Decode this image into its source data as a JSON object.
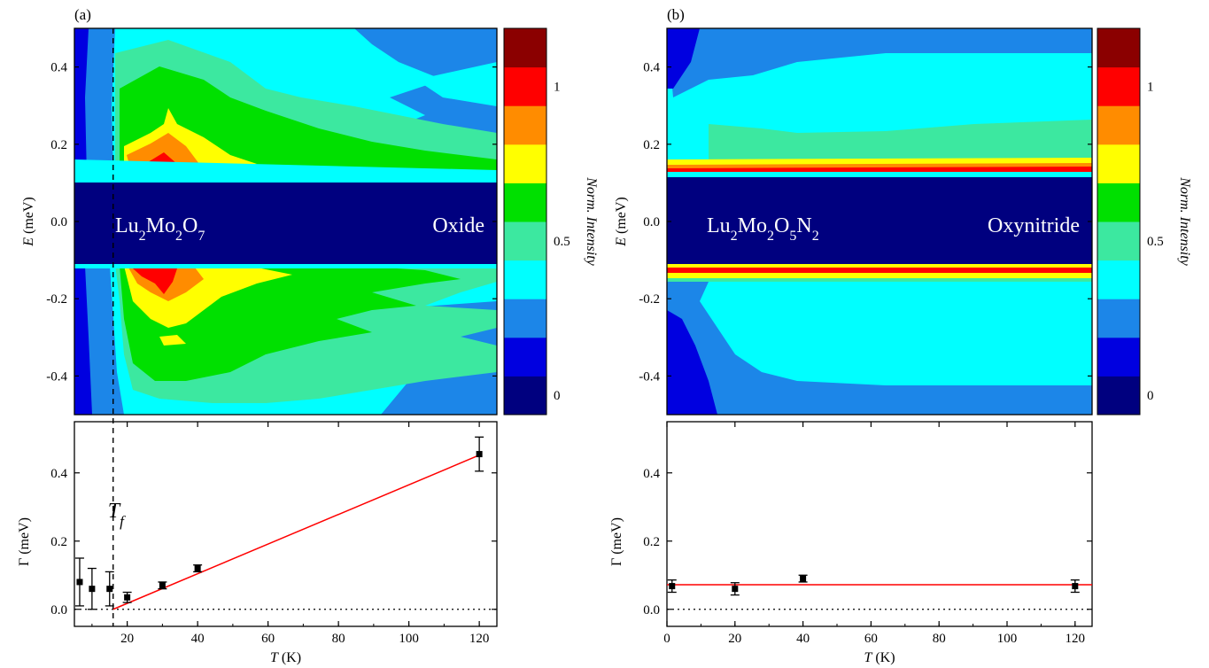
{
  "colorbar": {
    "label": "Norm. Intensity",
    "ticks": [
      "0",
      "0.5",
      "1"
    ],
    "colors": [
      "#00007f",
      "#0000e0",
      "#1c86e8",
      "#00ffff",
      "#3ce8a0",
      "#00e000",
      "#ffff00",
      "#ff8c00",
      "#ff0000",
      "#8b0000"
    ]
  },
  "chart_data": [
    {
      "panel": "(a)",
      "type": "heatmap",
      "ylabel_italic": "E",
      "ylabel_rest": " (meV)",
      "ylim": [
        -0.5,
        0.5
      ],
      "ytick_labels": [
        "0.4",
        "0.2",
        "0.0",
        "-0.2",
        "-0.4"
      ],
      "compound": "Lu2Mo2O7",
      "label": "Oxide",
      "annotation": "Tf",
      "tf_x": 16
    },
    {
      "panel": "(a)",
      "type": "scatter",
      "xlabel_italic": "T",
      "xlabel_rest": " (K)",
      "ylabel": "Γ (meV)",
      "xlim": [
        5,
        125
      ],
      "ylim": [
        -0.05,
        0.55
      ],
      "xtick_labels": [
        "20",
        "40",
        "60",
        "80",
        "100",
        "120"
      ],
      "ytick_labels": [
        "0.0",
        "0.2",
        "0.4"
      ],
      "points": [
        {
          "x": 6.5,
          "y": 0.08,
          "err": 0.07
        },
        {
          "x": 10,
          "y": 0.06,
          "err": 0.06
        },
        {
          "x": 15,
          "y": 0.06,
          "err": 0.05
        },
        {
          "x": 20,
          "y": 0.035,
          "err": 0.015
        },
        {
          "x": 30,
          "y": 0.07,
          "err": 0.01
        },
        {
          "x": 40,
          "y": 0.12,
          "err": 0.01
        },
        {
          "x": 120,
          "y": 0.455,
          "err": 0.05
        }
      ],
      "fit": {
        "x0": 16,
        "y0": 0.0,
        "x1": 120,
        "y1": 0.452
      }
    },
    {
      "panel": "(b)",
      "type": "heatmap",
      "ylabel_italic": "E",
      "ylabel_rest": " (meV)",
      "ylim": [
        -0.5,
        0.5
      ],
      "ytick_labels": [
        "0.4",
        "0.2",
        "0.0",
        "-0.2",
        "-0.4"
      ],
      "compound": "Lu2Mo2O5N2",
      "label": "Oxynitride"
    },
    {
      "panel": "(b)",
      "type": "scatter",
      "xlabel_italic": "T",
      "xlabel_rest": " (K)",
      "ylabel": "Γ (meV)",
      "xlim": [
        0,
        125
      ],
      "ylim": [
        -0.05,
        0.55
      ],
      "xtick_labels": [
        "0",
        "20",
        "40",
        "60",
        "80",
        "100",
        "120"
      ],
      "ytick_labels": [
        "0.0",
        "0.2",
        "0.4"
      ],
      "points": [
        {
          "x": 1.5,
          "y": 0.068,
          "err": 0.018
        },
        {
          "x": 20,
          "y": 0.06,
          "err": 0.018
        },
        {
          "x": 40,
          "y": 0.09,
          "err": 0.01
        },
        {
          "x": 120,
          "y": 0.068,
          "err": 0.018
        }
      ],
      "fit": {
        "x0": 0,
        "y0": 0.072,
        "x1": 125,
        "y1": 0.072
      }
    }
  ]
}
